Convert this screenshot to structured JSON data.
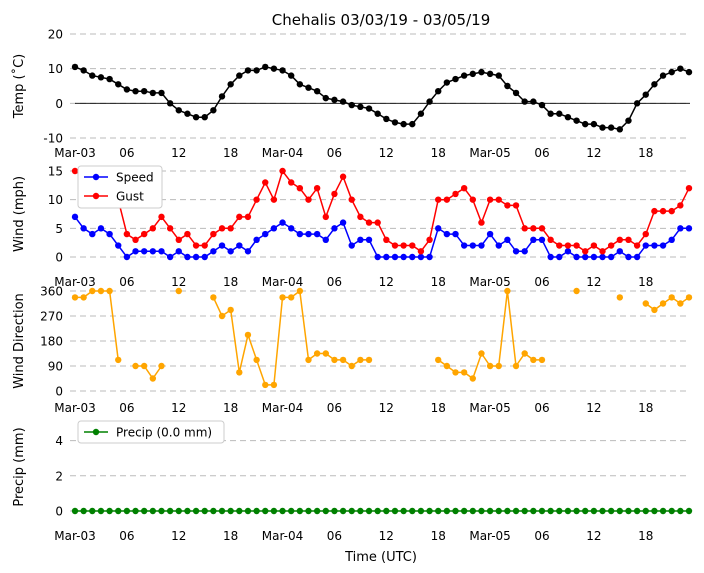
{
  "title": "Chehalis 03/03/19 - 03/05/19",
  "x_tick_labels": [
    "Mar-03",
    "06",
    "12",
    "18",
    "Mar-04",
    "06",
    "12",
    "18",
    "Mar-05",
    "06",
    "12",
    "18"
  ],
  "x_tick_hours": [
    0,
    6,
    12,
    18,
    24,
    30,
    36,
    42,
    48,
    54,
    60,
    66
  ],
  "x_label": "Time (UTC)",
  "chart_data": [
    {
      "type": "line",
      "name": "temperature",
      "ylabel": "Temp (˚C)",
      "ylim": [
        -10,
        20
      ],
      "yticks": [
        -10,
        0,
        10,
        20
      ],
      "zero_line": true,
      "grid": "horizontal-dashed",
      "x_hours": [
        0,
        1,
        2,
        3,
        4,
        5,
        6,
        7,
        8,
        9,
        10,
        11,
        12,
        13,
        14,
        15,
        16,
        17,
        18,
        19,
        20,
        21,
        22,
        23,
        24,
        25,
        26,
        27,
        28,
        29,
        30,
        31,
        32,
        33,
        34,
        35,
        36,
        37,
        38,
        39,
        40,
        41,
        42,
        43,
        44,
        45,
        46,
        47,
        48,
        49,
        50,
        51,
        52,
        53,
        54,
        55,
        56,
        57,
        58,
        59,
        60,
        61,
        62,
        63,
        64,
        65,
        66,
        67,
        68,
        69,
        70,
        71
      ],
      "series": [
        {
          "color": "#000000",
          "values": [
            10.5,
            9.5,
            8,
            7.5,
            7,
            5.5,
            4,
            3.5,
            3.5,
            3,
            3,
            0,
            -2,
            -3,
            -4,
            -4,
            -2,
            2,
            5.5,
            8,
            9.5,
            9.5,
            10.5,
            10,
            9.5,
            8,
            5.5,
            4.5,
            3.5,
            1.5,
            1,
            0.5,
            -0.5,
            -1,
            -1.5,
            -3,
            -4.5,
            -5.5,
            -6,
            -6,
            -3,
            0.5,
            3.5,
            6,
            7,
            8,
            8.5,
            9,
            8.5,
            8,
            5,
            3,
            0.5,
            0.5,
            -0.5,
            -3,
            -3,
            -4,
            -5,
            -6,
            -6,
            -7,
            -7,
            -7.5,
            -5,
            0,
            2.5,
            5.5,
            8,
            9,
            10,
            9
          ]
        }
      ]
    },
    {
      "type": "line",
      "name": "wind",
      "ylabel": "Wind (mph)",
      "ylim": [
        0,
        15
      ],
      "yticks": [
        0,
        5,
        10,
        15
      ],
      "grid": "horizontal-dashed",
      "legend": "top-left",
      "x_hours": [
        0,
        1,
        2,
        3,
        4,
        5,
        6,
        7,
        8,
        9,
        10,
        11,
        12,
        13,
        14,
        15,
        16,
        17,
        18,
        19,
        20,
        21,
        22,
        23,
        24,
        25,
        26,
        27,
        28,
        29,
        30,
        31,
        32,
        33,
        34,
        35,
        36,
        37,
        38,
        39,
        40,
        41,
        42,
        43,
        44,
        45,
        46,
        47,
        48,
        49,
        50,
        51,
        52,
        53,
        54,
        55,
        56,
        57,
        58,
        59,
        60,
        61,
        62,
        63,
        64,
        65,
        66,
        67,
        68,
        69,
        70,
        71
      ],
      "series": [
        {
          "name": "Speed",
          "color": "#0000ff",
          "values": [
            7,
            5,
            4,
            5,
            4,
            2,
            0,
            1,
            1,
            1,
            1,
            0,
            1,
            0,
            0,
            0,
            1,
            2,
            1,
            2,
            1,
            3,
            4,
            5,
            6,
            5,
            4,
            4,
            4,
            3,
            5,
            6,
            2,
            3,
            3,
            0,
            0,
            0,
            0,
            0,
            0,
            0,
            5,
            4,
            4,
            2,
            2,
            2,
            4,
            2,
            3,
            1,
            1,
            3,
            3,
            0,
            0,
            1,
            0,
            0,
            0,
            0,
            0,
            1,
            0,
            0,
            2,
            2,
            2,
            3,
            5,
            5
          ]
        },
        {
          "name": "Gust",
          "color": "#ff0000",
          "values": [
            15,
            14,
            12,
            10,
            11,
            10,
            4,
            3,
            4,
            5,
            7,
            5,
            3,
            4,
            2,
            2,
            4,
            5,
            5,
            7,
            7,
            10,
            13,
            10,
            15,
            13,
            12,
            10,
            12,
            7,
            11,
            14,
            10,
            7,
            6,
            6,
            3,
            2,
            2,
            2,
            1,
            3,
            10,
            10,
            11,
            12,
            10,
            6,
            10,
            10,
            9,
            9,
            5,
            5,
            5,
            3,
            2,
            2,
            2,
            1,
            2,
            1,
            2,
            3,
            3,
            2,
            4,
            8,
            8,
            8,
            9,
            12
          ]
        }
      ]
    },
    {
      "type": "line",
      "name": "wind_direction",
      "ylabel": "Wind Direction",
      "ylim": [
        0,
        360
      ],
      "yticks": [
        0,
        90,
        180,
        270,
        360
      ],
      "grid": "horizontal-dashed",
      "x_hours": [
        0,
        1,
        2,
        3,
        4,
        5,
        6,
        7,
        8,
        9,
        10,
        11,
        12,
        13,
        14,
        15,
        16,
        17,
        18,
        19,
        20,
        21,
        22,
        23,
        24,
        25,
        26,
        27,
        28,
        29,
        30,
        31,
        32,
        33,
        34,
        35,
        36,
        37,
        38,
        39,
        40,
        41,
        42,
        43,
        44,
        45,
        46,
        47,
        48,
        49,
        50,
        51,
        52,
        53,
        54,
        55,
        56,
        57,
        58,
        59,
        60,
        61,
        62,
        63,
        64,
        65,
        66,
        67,
        68,
        69,
        70,
        71
      ],
      "series": [
        {
          "color": "#ffa500",
          "values": [
            337,
            337,
            360,
            360,
            360,
            112,
            null,
            90,
            90,
            45,
            90,
            null,
            360,
            null,
            null,
            null,
            337,
            270,
            292,
            67,
            202,
            112,
            22,
            22,
            337,
            337,
            360,
            112,
            135,
            135,
            112,
            112,
            90,
            112,
            112,
            null,
            null,
            null,
            null,
            null,
            null,
            null,
            112,
            90,
            67,
            67,
            45,
            135,
            90,
            90,
            360,
            90,
            135,
            112,
            112,
            null,
            null,
            null,
            360,
            null,
            null,
            null,
            null,
            337,
            null,
            null,
            315,
            292,
            315,
            337,
            315,
            337
          ]
        }
      ]
    },
    {
      "type": "line",
      "name": "precipitation",
      "ylabel": "Precip (mm)",
      "ylim": [
        0,
        5
      ],
      "yticks": [
        0,
        2,
        4
      ],
      "grid": "horizontal-dashed",
      "legend": "top-left",
      "x_hours": [
        0,
        1,
        2,
        3,
        4,
        5,
        6,
        7,
        8,
        9,
        10,
        11,
        12,
        13,
        14,
        15,
        16,
        17,
        18,
        19,
        20,
        21,
        22,
        23,
        24,
        25,
        26,
        27,
        28,
        29,
        30,
        31,
        32,
        33,
        34,
        35,
        36,
        37,
        38,
        39,
        40,
        41,
        42,
        43,
        44,
        45,
        46,
        47,
        48,
        49,
        50,
        51,
        52,
        53,
        54,
        55,
        56,
        57,
        58,
        59,
        60,
        61,
        62,
        63,
        64,
        65,
        66,
        67,
        68,
        69,
        70,
        71
      ],
      "series": [
        {
          "name": "Precip (0.0 mm)",
          "color": "#008000",
          "values": [
            0,
            0,
            0,
            0,
            0,
            0,
            0,
            0,
            0,
            0,
            0,
            0,
            0,
            0,
            0,
            0,
            0,
            0,
            0,
            0,
            0,
            0,
            0,
            0,
            0,
            0,
            0,
            0,
            0,
            0,
            0,
            0,
            0,
            0,
            0,
            0,
            0,
            0,
            0,
            0,
            0,
            0,
            0,
            0,
            0,
            0,
            0,
            0,
            0,
            0,
            0,
            0,
            0,
            0,
            0,
            0,
            0,
            0,
            0,
            0,
            0,
            0,
            0,
            0,
            0,
            0,
            0,
            0,
            0,
            0,
            0,
            0
          ]
        }
      ]
    }
  ]
}
